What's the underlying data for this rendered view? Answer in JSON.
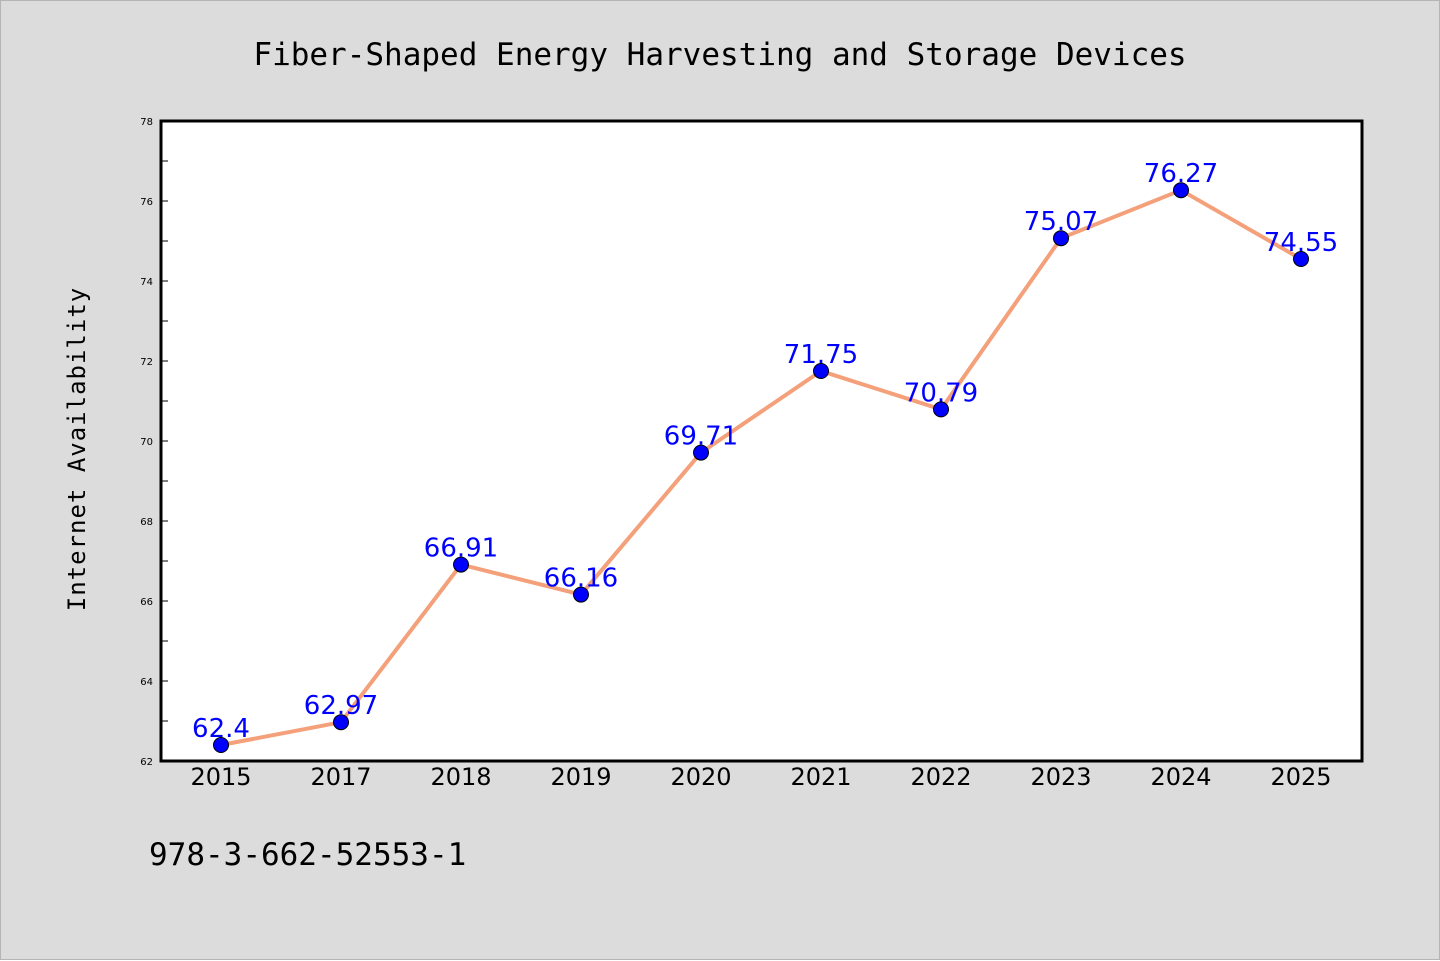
{
  "chart_data": {
    "type": "line",
    "title": "Fiber-Shaped Energy Harvesting and Storage Devices",
    "xlabel": "",
    "ylabel": "Internet Availability",
    "categories": [
      "2015",
      "2017",
      "2018",
      "2019",
      "2020",
      "2021",
      "2022",
      "2023",
      "2024",
      "2025"
    ],
    "series": [
      {
        "values": [
          62.4,
          62.97,
          66.91,
          66.16,
          69.71,
          71.75,
          70.79,
          75.07,
          76.27,
          74.55
        ],
        "data_labels": [
          "62.4",
          "62.97",
          "66.91",
          "66.16",
          "69.71",
          "71.75",
          "70.79",
          "75.07",
          "76.27",
          "74.55"
        ]
      }
    ],
    "ylim": [
      62,
      78
    ],
    "y_ticks": [
      "62",
      "64",
      "66",
      "68",
      "70",
      "72",
      "74",
      "76",
      "78"
    ],
    "y_minor_step": 1,
    "grid": false,
    "legend": "none",
    "annotation": "978-3-662-52553-1",
    "colors": {
      "line": "#f4a07a",
      "marker": "#0000ff",
      "label": "#0000ff",
      "plot_background": "#ffffff",
      "figure_background": "#dcdcdc",
      "axes_edge": "#000000"
    }
  }
}
